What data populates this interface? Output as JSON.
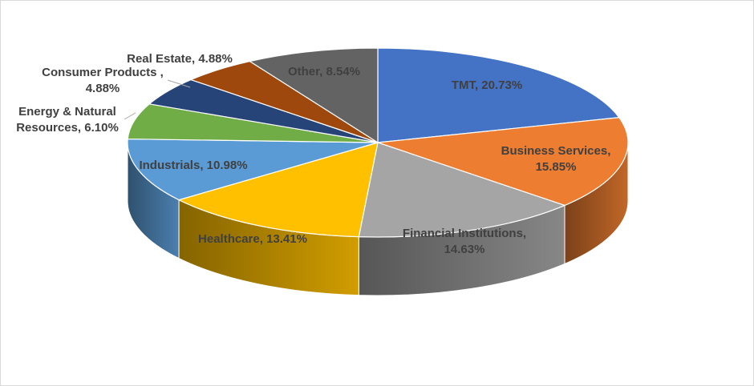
{
  "chart_data": {
    "type": "pie",
    "style": "3d",
    "title": "",
    "legend": "none",
    "slices": [
      {
        "name": "TMT",
        "value": 20.73,
        "color": "#4472c4",
        "label": [
          "TMT, 20.73%"
        ]
      },
      {
        "name": "Business Services",
        "value": 15.85,
        "color": "#ed7d31",
        "label": [
          "Business Services,",
          "15.85%"
        ]
      },
      {
        "name": "Financial Institutions",
        "value": 14.63,
        "color": "#a5a5a5",
        "label": [
          "Financial Institutions,",
          "14.63%"
        ]
      },
      {
        "name": "Healthcare",
        "value": 13.41,
        "color": "#ffc000",
        "label": [
          "Healthcare, 13.41%"
        ]
      },
      {
        "name": "Industrials",
        "value": 10.98,
        "color": "#5b9bd5",
        "label": [
          "Industrials, 10.98%"
        ]
      },
      {
        "name": "Energy & Natural Resources",
        "value": 6.1,
        "color": "#70ad47",
        "label": [
          "Energy & Natural",
          "Resources, 6.10%"
        ]
      },
      {
        "name": "Consumer Products",
        "value": 4.88,
        "color": "#264478",
        "label": [
          "Consumer Products ,",
          "4.88%"
        ]
      },
      {
        "name": "Real Estate",
        "value": 4.88,
        "color": "#9e480e",
        "label": [
          "Real Estate, 4.88%"
        ]
      },
      {
        "name": "Other",
        "value": 8.54,
        "color": "#636363",
        "label": [
          "Other, 8.54%"
        ]
      }
    ]
  }
}
